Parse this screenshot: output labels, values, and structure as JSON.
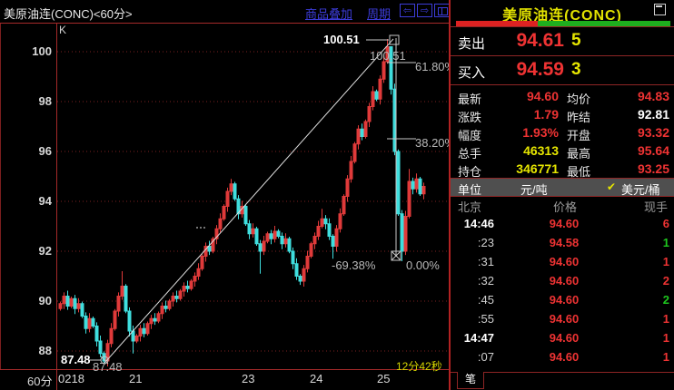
{
  "title_bar": {
    "symbol_title": "美原油连(CONC)<60分>",
    "overlay_link": "商品叠加",
    "period_link": "周期",
    "icons": [
      "prev-window-icon",
      "next-window-icon",
      "split-window-icon"
    ]
  },
  "chart_labels": {
    "k_label": "K",
    "period_label": "60分",
    "countdown": "12分42秒",
    "peak_price_bold": "100.51",
    "peak_price_tool": "100.51",
    "low_price_bold": "87.48",
    "low_price_tool": "87.48",
    "pct_618": "61.80%",
    "pct_382": "38.20%",
    "pct_0": "0.00%",
    "pct_drop": "-69.38%"
  },
  "chart_data": {
    "type": "candlestick",
    "title": "美原油连(CONC) 60分",
    "period": "60分",
    "ylim": [
      87,
      101
    ],
    "y_ticks": [
      100,
      98,
      96,
      94,
      92,
      90,
      88
    ],
    "y_tick_labels": [
      "100",
      "98",
      "96",
      "94",
      "92",
      "90",
      "88"
    ],
    "x_tick_labels": [
      "0218",
      "21",
      "23",
      "24",
      "25"
    ],
    "grid": "dotted-red",
    "first_open": 89.7,
    "closes": [
      89.9,
      90.2,
      89.8,
      90.1,
      89.7,
      89.9,
      89.4,
      88.9,
      89.3,
      89.0,
      88.4,
      87.9,
      87.6,
      88.3,
      88.9,
      89.6,
      90.2,
      90.6,
      89.6,
      88.8,
      88.4,
      88.6,
      88.9,
      88.7,
      89.1,
      89.3,
      89.2,
      89.5,
      89.8,
      89.7,
      90.0,
      90.2,
      90.1,
      90.4,
      90.6,
      90.5,
      90.8,
      91.0,
      91.3,
      91.8,
      92.2,
      92.0,
      92.5,
      92.9,
      93.3,
      93.8,
      94.4,
      94.7,
      94.1,
      93.5,
      93.8,
      93.1,
      92.7,
      92.9,
      92.3,
      92.0,
      92.4,
      92.7,
      92.5,
      92.8,
      92.6,
      92.3,
      92.5,
      92.0,
      91.5,
      91.0,
      90.8,
      91.3,
      91.8,
      92.3,
      92.6,
      93.0,
      93.3,
      93.1,
      92.6,
      92.2,
      92.9,
      93.5,
      94.2,
      94.9,
      95.6,
      96.3,
      96.9,
      96.6,
      97.2,
      97.8,
      98.4,
      98.1,
      98.9,
      99.6,
      100.2,
      98.5,
      96.0,
      93.5,
      92.0,
      93.4,
      94.8,
      94.5,
      94.9,
      94.3,
      94.6
    ],
    "wick_overrides": {
      "7": {
        "l": 88.7
      },
      "12": {
        "l": 87.48
      },
      "17": {
        "h": 91.2
      },
      "20": {
        "l": 87.9
      },
      "47": {
        "h": 94.9
      },
      "55": {
        "l": 91.1
      },
      "66": {
        "l": 90.65
      },
      "72": {
        "h": 93.7
      },
      "75": {
        "l": 91.7
      },
      "90": {
        "h": 100.51
      },
      "91": {
        "h": 100.1
      },
      "94": {
        "l": 91.6
      },
      "96": {
        "h": 95.3
      }
    },
    "trend_line": {
      "from_price": 87.48,
      "to_price": 100.51
    },
    "measure_tool": {
      "top_price": 100.51,
      "bottom_pct": "0.00%",
      "levels": [
        "61.80%",
        "38.20%"
      ],
      "drop_pct": "-69.38%"
    },
    "colors": {
      "up": "#e03a3a",
      "down": "#3fdede",
      "grid": "#7c1f1f",
      "axis": "#a62a2a",
      "trend": "#e0e0e0",
      "measure": "#c8c8c8"
    }
  },
  "quote_panel": {
    "title": "美原油连(CONC)",
    "ask": {
      "label": "卖出",
      "price": "94.61",
      "qty": "5"
    },
    "bid": {
      "label": "买入",
      "price": "94.59",
      "qty": "3"
    },
    "stats": {
      "r1": {
        "l1": "最新",
        "v1": "94.60",
        "l2": "均价",
        "v2": "94.83"
      },
      "r2": {
        "l1": "涨跌",
        "v1": "1.79",
        "l2": "昨结",
        "v2": "92.81"
      },
      "r3": {
        "l1": "幅度",
        "v1": "1.93%",
        "l2": "开盘",
        "v2": "93.32"
      },
      "r4": {
        "l1": "总手",
        "v1": "46313",
        "l2": "最高",
        "v2": "95.64"
      },
      "r5": {
        "l1": "持仓",
        "v1": "346771",
        "l2": "最低",
        "v2": "93.25"
      }
    },
    "unit_row": {
      "label": "单位",
      "cny": "元/吨",
      "check": "✔",
      "usd": "美元/桶"
    },
    "list_header": {
      "c1": "北京",
      "c2": "价格",
      "c3": "现手"
    },
    "ticks": [
      {
        "time": "14:46",
        "price": "94.60",
        "qty": "6"
      },
      {
        "time": ":23",
        "price": "94.58",
        "qty": "1"
      },
      {
        "time": ":31",
        "price": "94.60",
        "qty": "1"
      },
      {
        "time": ":32",
        "price": "94.60",
        "qty": "2"
      },
      {
        "time": ":45",
        "price": "94.60",
        "qty": "2"
      },
      {
        "time": ":55",
        "price": "94.60",
        "qty": "1"
      },
      {
        "time": "14:47",
        "price": "94.60",
        "qty": "1"
      },
      {
        "time": ":07",
        "price": "94.60",
        "qty": "1"
      }
    ],
    "tab_label": "笔"
  }
}
